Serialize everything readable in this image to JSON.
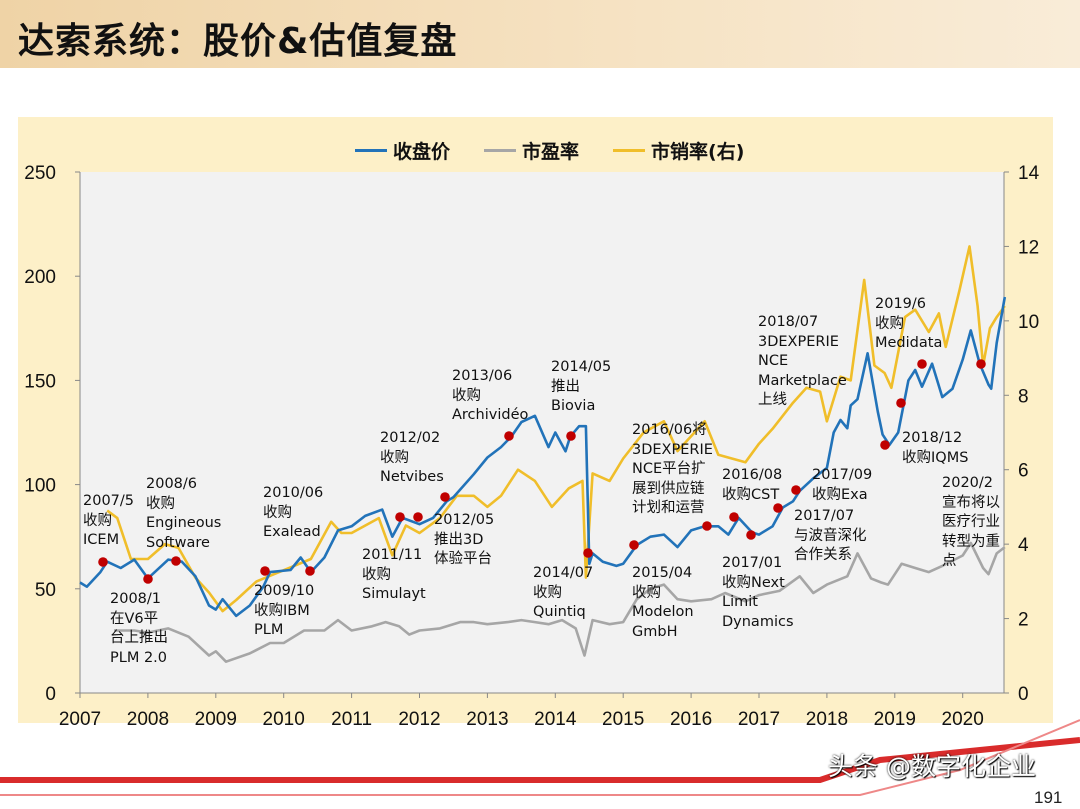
{
  "header": {
    "title": "达索系统：股价&估值复盘"
  },
  "footer": {
    "watermark": "头条 @数字化企业",
    "page_number": "191"
  },
  "colors": {
    "price": "#2273b9",
    "pe": "#a6a6a6",
    "ps": "#f0be2a",
    "event_dot": "#c00000",
    "panel_bg": "#fdf0c8",
    "plot_bg": "#f2f2f2"
  },
  "chart_data": {
    "type": "line",
    "title": "",
    "legend": {
      "placement": "top",
      "entries": [
        "收盘价",
        "市盈率",
        "市销率(右)"
      ]
    },
    "x_ticks": [
      "2007",
      "2008",
      "2009",
      "2010",
      "2011",
      "2012",
      "2013",
      "2014",
      "2015",
      "2016",
      "2017",
      "2018",
      "2019",
      "2020"
    ],
    "y_left": {
      "range": [
        0,
        250
      ],
      "ticks": [
        "0",
        "50",
        "100",
        "150",
        "200",
        "250"
      ]
    },
    "y_right": {
      "range": [
        0,
        14
      ],
      "ticks": [
        "0",
        "2",
        "4",
        "6",
        "8",
        "10",
        "12",
        "14"
      ]
    },
    "grid": false,
    "series": [
      {
        "name": "收盘价",
        "axis": "left",
        "points": [
          [
            2007.0,
            53
          ],
          [
            2007.1,
            51
          ],
          [
            2007.3,
            58
          ],
          [
            2007.4,
            63
          ],
          [
            2007.6,
            60
          ],
          [
            2007.8,
            64
          ],
          [
            2008.0,
            55
          ],
          [
            2008.3,
            64
          ],
          [
            2008.5,
            63
          ],
          [
            2008.7,
            56
          ],
          [
            2008.9,
            42
          ],
          [
            2009.0,
            40
          ],
          [
            2009.1,
            45
          ],
          [
            2009.3,
            37
          ],
          [
            2009.5,
            42
          ],
          [
            2009.7,
            51
          ],
          [
            2009.8,
            58
          ],
          [
            2010.1,
            59
          ],
          [
            2010.25,
            65
          ],
          [
            2010.4,
            58
          ],
          [
            2010.6,
            65
          ],
          [
            2010.8,
            78
          ],
          [
            2011.0,
            80
          ],
          [
            2011.2,
            85
          ],
          [
            2011.45,
            88
          ],
          [
            2011.6,
            75
          ],
          [
            2011.75,
            84
          ],
          [
            2012.0,
            81
          ],
          [
            2012.2,
            84
          ],
          [
            2012.4,
            92
          ],
          [
            2012.5,
            94
          ],
          [
            2012.8,
            105
          ],
          [
            2013.0,
            113
          ],
          [
            2013.2,
            118
          ],
          [
            2013.35,
            123
          ],
          [
            2013.5,
            130
          ],
          [
            2013.7,
            133
          ],
          [
            2013.9,
            118
          ],
          [
            2014.0,
            125
          ],
          [
            2014.15,
            116
          ],
          [
            2014.22,
            123
          ],
          [
            2014.35,
            128
          ],
          [
            2014.45,
            128
          ],
          [
            2014.5,
            62
          ],
          [
            2014.55,
            67
          ],
          [
            2014.7,
            63
          ],
          [
            2014.9,
            61
          ],
          [
            2015.0,
            62
          ],
          [
            2015.2,
            71
          ],
          [
            2015.4,
            75
          ],
          [
            2015.6,
            76
          ],
          [
            2015.8,
            70
          ],
          [
            2016.0,
            78
          ],
          [
            2016.2,
            80
          ],
          [
            2016.4,
            80
          ],
          [
            2016.55,
            76
          ],
          [
            2016.7,
            84
          ],
          [
            2016.9,
            77
          ],
          [
            2017.0,
            76
          ],
          [
            2017.2,
            80
          ],
          [
            2017.35,
            89
          ],
          [
            2017.5,
            92
          ],
          [
            2017.6,
            97
          ],
          [
            2017.8,
            103
          ],
          [
            2018.0,
            108
          ],
          [
            2018.1,
            125
          ],
          [
            2018.2,
            131
          ],
          [
            2018.3,
            127
          ],
          [
            2018.35,
            138
          ],
          [
            2018.45,
            141
          ],
          [
            2018.6,
            163
          ],
          [
            2018.75,
            135
          ],
          [
            2018.82,
            124
          ],
          [
            2018.92,
            119
          ],
          [
            2019.05,
            125
          ],
          [
            2019.2,
            150
          ],
          [
            2019.3,
            155
          ],
          [
            2019.4,
            147
          ],
          [
            2019.55,
            158
          ],
          [
            2019.7,
            142
          ],
          [
            2019.85,
            146
          ],
          [
            2020.0,
            160
          ],
          [
            2020.12,
            174
          ],
          [
            2020.25,
            158
          ],
          [
            2020.38,
            148
          ],
          [
            2020.42,
            146
          ],
          [
            2020.5,
            168
          ],
          [
            2020.62,
            190
          ]
        ]
      },
      {
        "name": "市盈率",
        "axis": "left",
        "points": [
          [
            2007.5,
            30
          ],
          [
            2007.8,
            30
          ],
          [
            2008.0,
            29
          ],
          [
            2008.3,
            31
          ],
          [
            2008.6,
            27
          ],
          [
            2008.9,
            18
          ],
          [
            2009.0,
            20
          ],
          [
            2009.15,
            15
          ],
          [
            2009.5,
            19
          ],
          [
            2009.8,
            24
          ],
          [
            2010.0,
            24
          ],
          [
            2010.3,
            30
          ],
          [
            2010.6,
            30
          ],
          [
            2010.8,
            35
          ],
          [
            2011.0,
            30
          ],
          [
            2011.3,
            32
          ],
          [
            2011.5,
            34
          ],
          [
            2011.7,
            32
          ],
          [
            2011.85,
            28
          ],
          [
            2012.0,
            30
          ],
          [
            2012.3,
            31
          ],
          [
            2012.6,
            34
          ],
          [
            2012.8,
            34
          ],
          [
            2013.0,
            33
          ],
          [
            2013.3,
            34
          ],
          [
            2013.5,
            35
          ],
          [
            2013.7,
            34
          ],
          [
            2013.9,
            33
          ],
          [
            2014.1,
            35
          ],
          [
            2014.3,
            31
          ],
          [
            2014.43,
            18
          ],
          [
            2014.55,
            35
          ],
          [
            2014.8,
            33
          ],
          [
            2015.0,
            34
          ],
          [
            2015.2,
            45
          ],
          [
            2015.4,
            50
          ],
          [
            2015.6,
            52
          ],
          [
            2015.8,
            45
          ],
          [
            2016.0,
            44
          ],
          [
            2016.3,
            45
          ],
          [
            2016.5,
            48
          ],
          [
            2016.8,
            44
          ],
          [
            2017.0,
            47
          ],
          [
            2017.3,
            49
          ],
          [
            2017.6,
            56
          ],
          [
            2017.8,
            48
          ],
          [
            2018.0,
            52
          ],
          [
            2018.3,
            56
          ],
          [
            2018.45,
            67
          ],
          [
            2018.65,
            55
          ],
          [
            2018.8,
            53
          ],
          [
            2018.9,
            52
          ],
          [
            2019.1,
            62
          ],
          [
            2019.3,
            60
          ],
          [
            2019.5,
            58
          ],
          [
            2019.7,
            61
          ],
          [
            2020.0,
            66
          ],
          [
            2020.12,
            72
          ],
          [
            2020.3,
            60
          ],
          [
            2020.38,
            57
          ],
          [
            2020.5,
            67
          ],
          [
            2020.62,
            70
          ]
        ]
      },
      {
        "name": "市销率(右)",
        "axis": "right",
        "points": [
          [
            2007.4,
            4.9
          ],
          [
            2007.55,
            4.7
          ],
          [
            2007.75,
            3.6
          ],
          [
            2008.0,
            3.6
          ],
          [
            2008.25,
            4.0
          ],
          [
            2008.45,
            3.9
          ],
          [
            2008.7,
            3.1
          ],
          [
            2008.9,
            2.7
          ],
          [
            2009.1,
            2.2
          ],
          [
            2009.3,
            2.5
          ],
          [
            2009.6,
            3.0
          ],
          [
            2010.0,
            3.3
          ],
          [
            2010.4,
            3.6
          ],
          [
            2010.7,
            4.6
          ],
          [
            2010.85,
            4.3
          ],
          [
            2011.0,
            4.3
          ],
          [
            2011.4,
            4.7
          ],
          [
            2011.6,
            3.7
          ],
          [
            2011.8,
            4.5
          ],
          [
            2012.0,
            4.3
          ],
          [
            2012.3,
            4.7
          ],
          [
            2012.55,
            5.3
          ],
          [
            2012.8,
            5.3
          ],
          [
            2013.0,
            5.0
          ],
          [
            2013.2,
            5.3
          ],
          [
            2013.45,
            6.0
          ],
          [
            2013.7,
            5.7
          ],
          [
            2013.95,
            5.0
          ],
          [
            2014.2,
            5.5
          ],
          [
            2014.4,
            5.7
          ],
          [
            2014.45,
            3.1
          ],
          [
            2014.55,
            5.9
          ],
          [
            2014.8,
            5.7
          ],
          [
            2015.0,
            6.3
          ],
          [
            2015.3,
            7.0
          ],
          [
            2015.6,
            7.3
          ],
          [
            2015.8,
            6.5
          ],
          [
            2016.0,
            6.9
          ],
          [
            2016.2,
            7.3
          ],
          [
            2016.4,
            6.4
          ],
          [
            2016.6,
            6.3
          ],
          [
            2016.8,
            6.2
          ],
          [
            2017.0,
            6.7
          ],
          [
            2017.2,
            7.1
          ],
          [
            2017.5,
            7.8
          ],
          [
            2017.7,
            8.2
          ],
          [
            2017.9,
            8.1
          ],
          [
            2018.0,
            7.3
          ],
          [
            2018.2,
            8.5
          ],
          [
            2018.35,
            8.4
          ],
          [
            2018.55,
            11.1
          ],
          [
            2018.7,
            8.8
          ],
          [
            2018.85,
            8.6
          ],
          [
            2018.95,
            8.2
          ],
          [
            2019.15,
            10.1
          ],
          [
            2019.3,
            10.3
          ],
          [
            2019.5,
            9.7
          ],
          [
            2019.65,
            10.2
          ],
          [
            2019.75,
            9.3
          ],
          [
            2019.95,
            10.8
          ],
          [
            2020.1,
            12.0
          ],
          [
            2020.22,
            10.4
          ],
          [
            2020.3,
            8.8
          ],
          [
            2020.4,
            9.8
          ],
          [
            2020.5,
            10.1
          ],
          [
            2020.62,
            10.4
          ]
        ]
      }
    ],
    "events": [
      {
        "date": "2007/5",
        "lines": [
          "2007/5",
          "收购",
          "ICEM"
        ]
      },
      {
        "date": "2008/1",
        "lines": [
          "2008/1",
          "在V6平",
          "台上推出",
          "PLM 2.0"
        ]
      },
      {
        "date": "2008/6",
        "lines": [
          "2008/6",
          "收购",
          "Engineous",
          "Software"
        ]
      },
      {
        "date": "2009/10",
        "lines": [
          "2009/10",
          "收购IBM",
          "PLM"
        ]
      },
      {
        "date": "2010/06",
        "lines": [
          "2010/06",
          "收购",
          "Exalead"
        ]
      },
      {
        "date": "2011/11",
        "lines": [
          "2011/11",
          "收购",
          "Simulayt"
        ]
      },
      {
        "date": "2012/02",
        "lines": [
          "2012/02",
          "收购",
          "Netvibes"
        ]
      },
      {
        "date": "2012/05",
        "lines": [
          "2012/05",
          "推出3D",
          "体验平台"
        ]
      },
      {
        "date": "2013/06",
        "lines": [
          "2013/06",
          "收购",
          "Archividéo"
        ]
      },
      {
        "date": "2014/05",
        "lines": [
          "2014/05",
          "推出",
          "Biovia"
        ]
      },
      {
        "date": "2014/07",
        "lines": [
          "2014/07",
          "收购",
          "Quintiq"
        ]
      },
      {
        "date": "2015/04",
        "lines": [
          "2015/04",
          "收购",
          "Modelon",
          "GmbH"
        ]
      },
      {
        "date": "2016/06",
        "lines": [
          "2016/06将",
          "3DEXPERIE",
          "NCE平台扩",
          "展到供应链",
          "计划和运营"
        ]
      },
      {
        "date": "2016/08",
        "lines": [
          "2016/08",
          "收购CST"
        ]
      },
      {
        "date": "2017/01",
        "lines": [
          "2017/01",
          "收购Next",
          "Limit",
          "Dynamics"
        ]
      },
      {
        "date": "2017/07",
        "lines": [
          "2017/07",
          "与波音深化",
          "合作关系"
        ]
      },
      {
        "date": "2017/09",
        "lines": [
          "2017/09",
          "收购Exa"
        ]
      },
      {
        "date": "2018/07",
        "lines": [
          "2018/07",
          "3DEXPERIE",
          "NCE",
          "Marketplace",
          "上线"
        ]
      },
      {
        "date": "2018/12",
        "lines": [
          "2018/12",
          "收购IQMS"
        ]
      },
      {
        "date": "2019/6",
        "lines": [
          "2019/6",
          "收购",
          "Medidata"
        ]
      },
      {
        "date": "2020/2",
        "lines": [
          "2020/2",
          "宣布将以",
          "医疗行业",
          "转型为重",
          "点"
        ]
      }
    ]
  }
}
